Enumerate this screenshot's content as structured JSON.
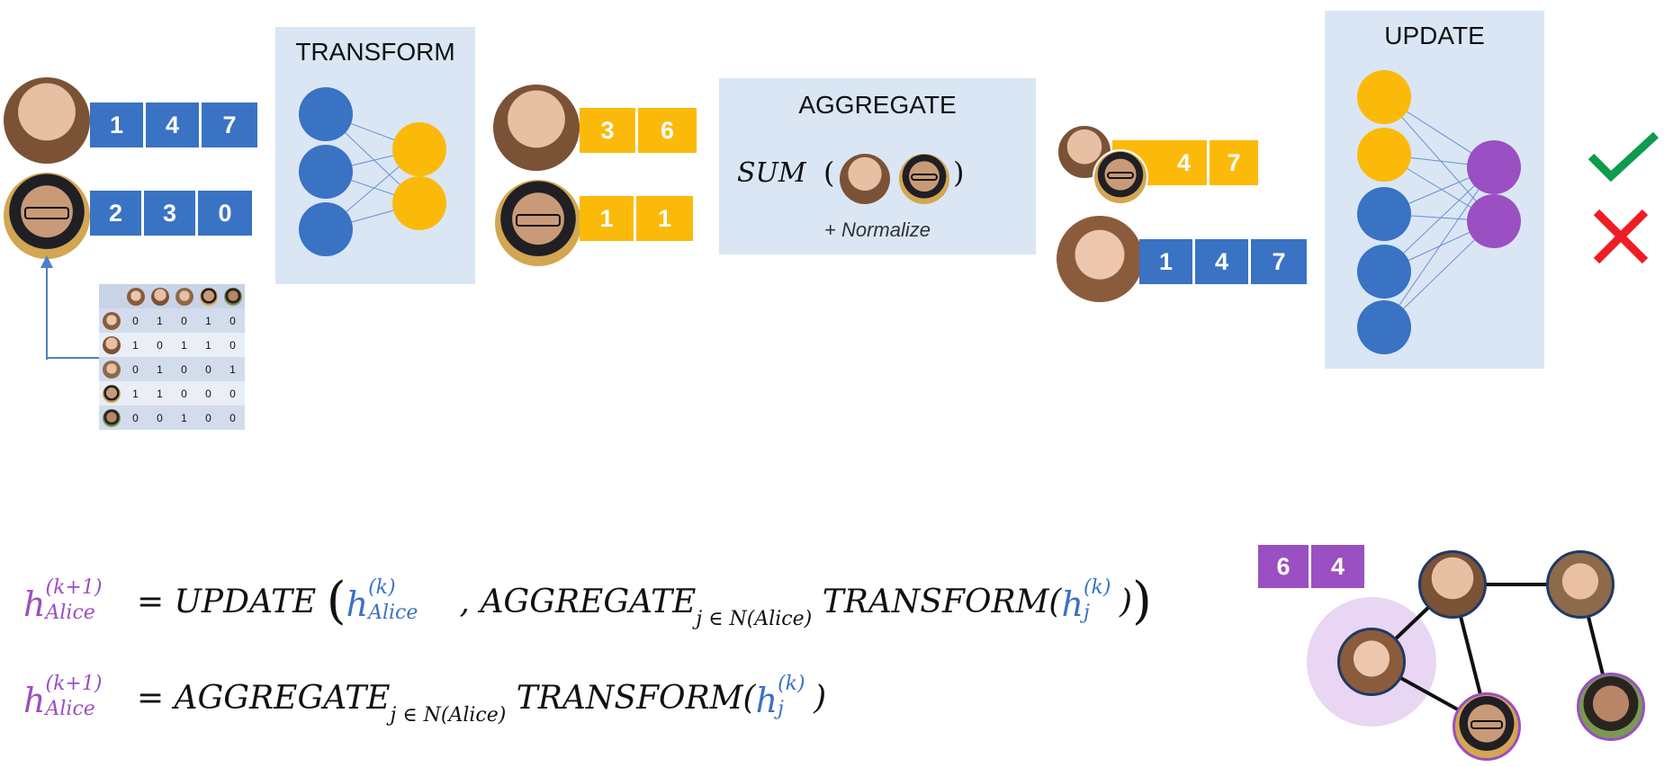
{
  "panels": {
    "transform": "TRANSFORM",
    "aggregate": "AGGREGATE",
    "update": "UPDATE"
  },
  "aggregate_formula": {
    "sum": "SUM",
    "open": "(",
    "close": ")",
    "normalize": "+ Normalize"
  },
  "vectors": {
    "input_1": [
      "1",
      "4",
      "7"
    ],
    "input_2": [
      "2",
      "3",
      "0"
    ],
    "transformed_1": [
      "3",
      "6"
    ],
    "transformed_2": [
      "1",
      "1"
    ],
    "aggregated": [
      "4",
      "7"
    ],
    "alice": [
      "1",
      "4",
      "7"
    ],
    "result": [
      "6",
      "4"
    ]
  },
  "adjacency": [
    [
      "0",
      "1",
      "0",
      "1",
      "0"
    ],
    [
      "1",
      "0",
      "1",
      "1",
      "0"
    ],
    [
      "0",
      "1",
      "0",
      "0",
      "1"
    ],
    [
      "1",
      "1",
      "0",
      "0",
      "0"
    ],
    [
      "0",
      "0",
      "1",
      "0",
      "0"
    ]
  ],
  "equation_1": {
    "h": "h",
    "sup": "(k+1)",
    "sub": "Alice",
    "eq_update": "= UPDATE",
    "h_k": "h",
    "h_k_sup": "(k)",
    "h_k_sub": "Alice",
    "comma": " ,",
    "aggregate": "AGGREGATE",
    "agg_sub": "j ∈ N(Alice)",
    "transform": "TRANSFORM(",
    "hj": "h",
    "hj_sub": "j",
    "hj_sup": "(k)",
    "close": ")"
  },
  "equation_2": {
    "h": "h",
    "sup": "(k+1)",
    "sub": "Alice",
    "eq_aggregate": "= AGGREGATE",
    "agg_sub": "j ∈ N(Alice)",
    "transform": "TRANSFORM(",
    "hj": "h",
    "hj_sub": "j",
    "hj_sup": "(k)",
    "close": ")"
  },
  "colors": {
    "blue": "#3a72c4",
    "yellow": "#fbba0a",
    "purple": "#9a4fc2",
    "panel": "#dae6f4",
    "check": "#0e9b4c",
    "cross": "#ee1c25"
  },
  "icons": [
    "check-icon",
    "cross-icon"
  ]
}
